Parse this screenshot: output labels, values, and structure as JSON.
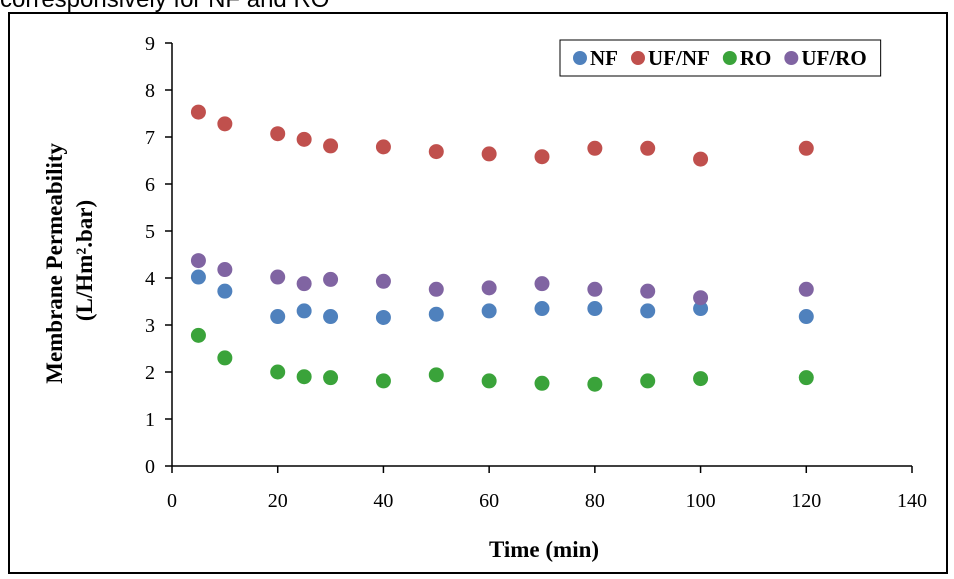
{
  "caption": "corresponsively for NF and RO",
  "chart_data": {
    "type": "scatter",
    "title": "",
    "xlabel": "Time (min)",
    "ylabel_line1": "Membrane Permeability",
    "ylabel_line2": "(L/Hm².bar)",
    "xlim": [
      0,
      140
    ],
    "ylim": [
      0,
      9
    ],
    "xticks": [
      0,
      20,
      40,
      60,
      80,
      100,
      120,
      140
    ],
    "yticks": [
      0,
      1,
      2,
      3,
      4,
      5,
      6,
      7,
      8,
      9
    ],
    "grid": false,
    "legend_position": "top-right",
    "series": [
      {
        "name": "NF",
        "color": "#4f81bd",
        "x": [
          5,
          10,
          20,
          25,
          30,
          40,
          50,
          60,
          70,
          80,
          90,
          100,
          120
        ],
        "y": [
          4.02,
          3.72,
          3.18,
          3.3,
          3.18,
          3.16,
          3.23,
          3.3,
          3.35,
          3.35,
          3.3,
          3.35,
          3.18
        ]
      },
      {
        "name": "UF/NF",
        "color": "#c0504d",
        "x": [
          5,
          10,
          20,
          25,
          30,
          40,
          50,
          60,
          70,
          80,
          90,
          100,
          120
        ],
        "y": [
          7.53,
          7.28,
          7.07,
          6.95,
          6.81,
          6.79,
          6.69,
          6.64,
          6.58,
          6.76,
          6.76,
          6.53,
          6.76
        ]
      },
      {
        "name": "RO",
        "color": "#3aa33a",
        "x": [
          5,
          10,
          20,
          25,
          30,
          40,
          50,
          60,
          70,
          80,
          90,
          100,
          120
        ],
        "y": [
          2.78,
          2.3,
          2.0,
          1.9,
          1.88,
          1.81,
          1.94,
          1.81,
          1.76,
          1.74,
          1.81,
          1.86,
          1.88
        ]
      },
      {
        "name": "UF/RO",
        "color": "#8064a2",
        "x": [
          5,
          10,
          20,
          25,
          30,
          40,
          50,
          60,
          70,
          80,
          90,
          100,
          120
        ],
        "y": [
          4.37,
          4.18,
          4.02,
          3.88,
          3.97,
          3.93,
          3.76,
          3.79,
          3.88,
          3.76,
          3.72,
          3.58,
          3.76
        ]
      }
    ]
  }
}
